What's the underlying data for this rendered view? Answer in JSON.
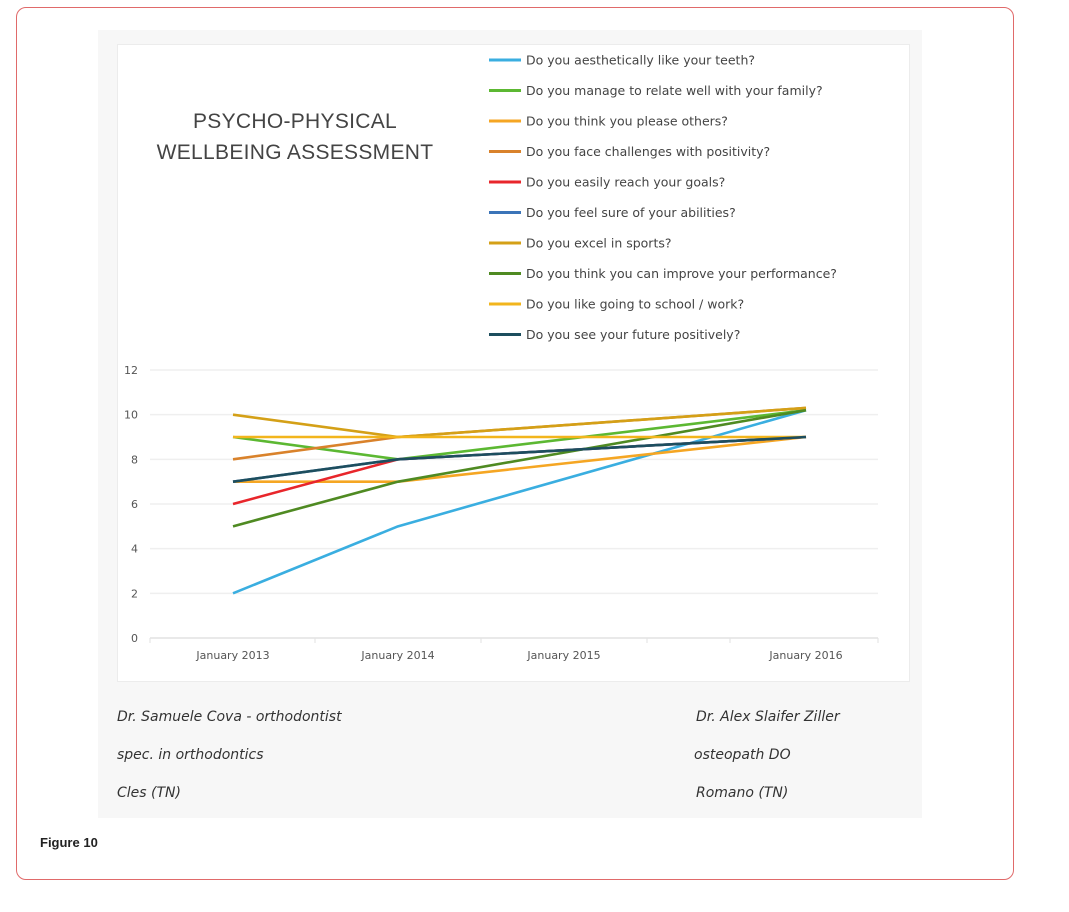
{
  "figure_label": "Figure 10",
  "chart_data": {
    "type": "line",
    "title": [
      "PSYCHO-PHYSICAL",
      "WELLBEING ASSESSMENT"
    ],
    "xlabel": "",
    "ylabel": "",
    "categories": [
      "January 2013",
      "January 2014",
      "January 2015",
      "January 2016"
    ],
    "ylim": [
      0,
      12
    ],
    "yticks": [
      "0",
      "2",
      "4",
      "6",
      "8",
      "10",
      "12"
    ],
    "grid": true,
    "legend_position": "top-right",
    "series": [
      {
        "name": "Do you aesthetically like your teeth?",
        "color": "#3aaee0",
        "values": [
          2,
          5,
          null,
          10.2
        ]
      },
      {
        "name": "Do you manage to relate well with your family?",
        "color": "#5cb832",
        "values": [
          9,
          8,
          null,
          10.2
        ]
      },
      {
        "name": "Do you think you please others?",
        "color": "#f5a623",
        "values": [
          7,
          7,
          null,
          9
        ]
      },
      {
        "name": "Do you face challenges with positivity?",
        "color": "#d9822b",
        "values": [
          8,
          9,
          null,
          10.3
        ]
      },
      {
        "name": "Do you easily reach your goals?",
        "color": "#e8262b",
        "values": [
          6,
          8,
          null,
          9
        ]
      },
      {
        "name": "Do you feel sure of your abilities?",
        "color": "#3b74b8",
        "values": [
          7,
          8,
          null,
          9
        ]
      },
      {
        "name": "Do you excel in sports?",
        "color": "#d4a017",
        "values": [
          10,
          9,
          null,
          10.3
        ]
      },
      {
        "name": "Do you think you can improve your performance?",
        "color": "#4f8a22",
        "values": [
          5,
          7,
          null,
          10.2
        ]
      },
      {
        "name": "Do you like going to school / work?",
        "color": "#f2b51c",
        "values": [
          9,
          9,
          null,
          9
        ]
      },
      {
        "name": "Do you see your future positively?",
        "color": "#1d4e5e",
        "values": [
          7,
          8,
          null,
          9
        ]
      }
    ]
  },
  "signatures": {
    "left": [
      "Dr. Samuele Cova - orthodontist",
      "spec. in orthodontics",
      "Cles (TN)"
    ],
    "right": [
      "Dr. Alex Slaifer Ziller",
      "osteopath DO",
      "Romano (TN)"
    ]
  }
}
